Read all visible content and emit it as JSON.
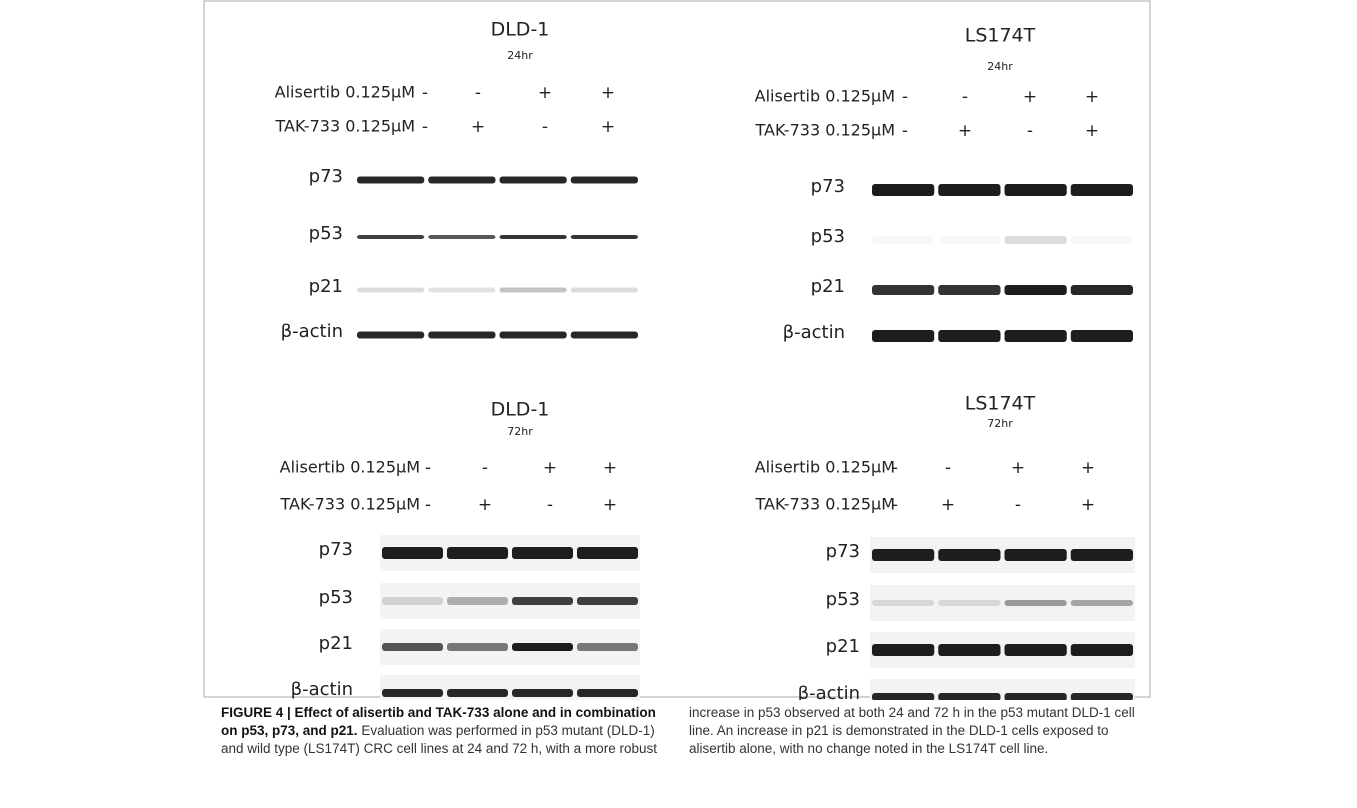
{
  "panels": [
    {
      "title": "DLD-1",
      "time": "24hr",
      "treatments": [
        {
          "label": "Alisertib 0.125μM",
          "signs": [
            "-",
            "-",
            "+",
            "+"
          ]
        },
        {
          "label": "TAK-733 0.125μM",
          "signs": [
            "-",
            "+",
            "-",
            "+"
          ]
        }
      ],
      "proteins": [
        "p73",
        "p53",
        "p21",
        "β-actin"
      ]
    },
    {
      "title": "LS174T",
      "time": "24hr",
      "treatments": [
        {
          "label": "Alisertib 0.125μM",
          "signs": [
            "-",
            "-",
            "+",
            "+"
          ]
        },
        {
          "label": "TAK-733 0.125μM",
          "signs": [
            "-",
            "+",
            "-",
            "+"
          ]
        }
      ],
      "proteins": [
        "p73",
        "p53",
        "p21",
        "β-actin"
      ]
    },
    {
      "title": "DLD-1",
      "time": "72hr",
      "treatments": [
        {
          "label": "Alisertib 0.125μM",
          "signs": [
            "-",
            "-",
            "+",
            "+"
          ]
        },
        {
          "label": "TAK-733 0.125μM",
          "signs": [
            "-",
            "+",
            "-",
            "+"
          ]
        }
      ],
      "proteins": [
        "p73",
        "p53",
        "p21",
        "β-actin"
      ]
    },
    {
      "title": "LS174T",
      "time": "72hr",
      "treatments": [
        {
          "label": "Alisertib 0.125μM",
          "signs": [
            "-",
            "-",
            "+",
            "+"
          ]
        },
        {
          "label": "TAK-733 0.125μM",
          "signs": [
            "-",
            "+",
            "-",
            "+"
          ]
        }
      ],
      "proteins": [
        "p73",
        "p53",
        "p21",
        "β-actin"
      ]
    }
  ],
  "caption": {
    "label": "FIGURE 4 | Effect of alisertib and TAK-733 alone and in combination on p53, p73, and p21.",
    "text": "Evaluation was performed in p53 mutant (DLD-1) and wild type (LS174T) CRC cell lines at 24 and 72 h, with a more robust increase in p53 observed at both 24 and 72 h in the p53 mutant DLD-1 cell line. An increase in p21 is demonstrated in the DLD-1 cells exposed to alisertib alone, with no change noted in the LS174T cell line."
  }
}
